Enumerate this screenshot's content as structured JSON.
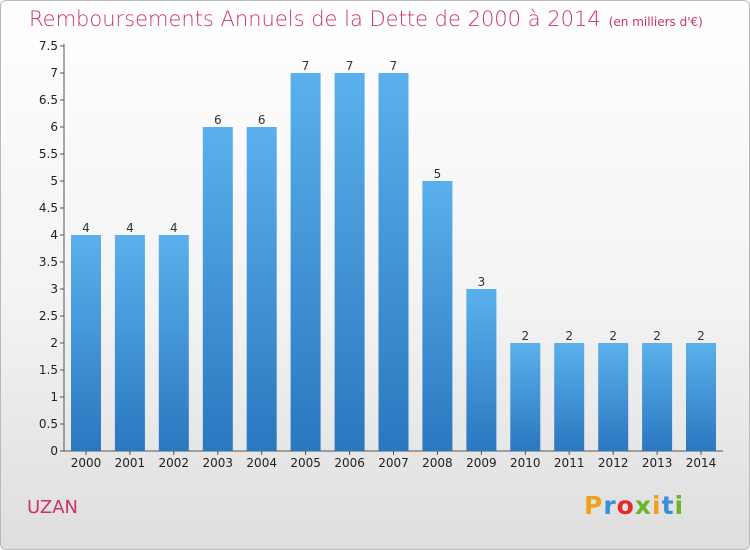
{
  "chart_data": {
    "type": "bar",
    "title": "Remboursements Annuels de la Dette de 2000 à 2014",
    "subtitle": "(en milliers d'€)",
    "categories": [
      "2000",
      "2001",
      "2002",
      "2003",
      "2004",
      "2005",
      "2006",
      "2007",
      "2008",
      "2009",
      "2010",
      "2011",
      "2012",
      "2013",
      "2014"
    ],
    "values": [
      4,
      4,
      4,
      6,
      6,
      7,
      7,
      7,
      5,
      3,
      2,
      2,
      2,
      2,
      2
    ],
    "value_labels": [
      "4",
      "4",
      "4",
      "6",
      "6",
      "7",
      "7",
      "7",
      "5",
      "3",
      "2",
      "2",
      "2",
      "2",
      "2"
    ],
    "ylim": [
      0,
      7.5
    ],
    "yticks": [
      "0",
      "0.5",
      "1",
      "1.5",
      "2",
      "2.5",
      "3",
      "3.5",
      "4",
      "4.5",
      "5",
      "5.5",
      "6",
      "6.5",
      "7",
      "7.5"
    ],
    "grid": false,
    "bar_color": "#4fa3e3"
  },
  "commune": "UZAN",
  "brand": {
    "letters": [
      "P",
      "r",
      "o",
      "x",
      "i",
      "t",
      "i"
    ],
    "colors": [
      "#f0a11c",
      "#3a8fd6",
      "#e4282c",
      "#6bb52b",
      "#f0a11c",
      "#3a8fd6",
      "#6bb52b"
    ]
  }
}
